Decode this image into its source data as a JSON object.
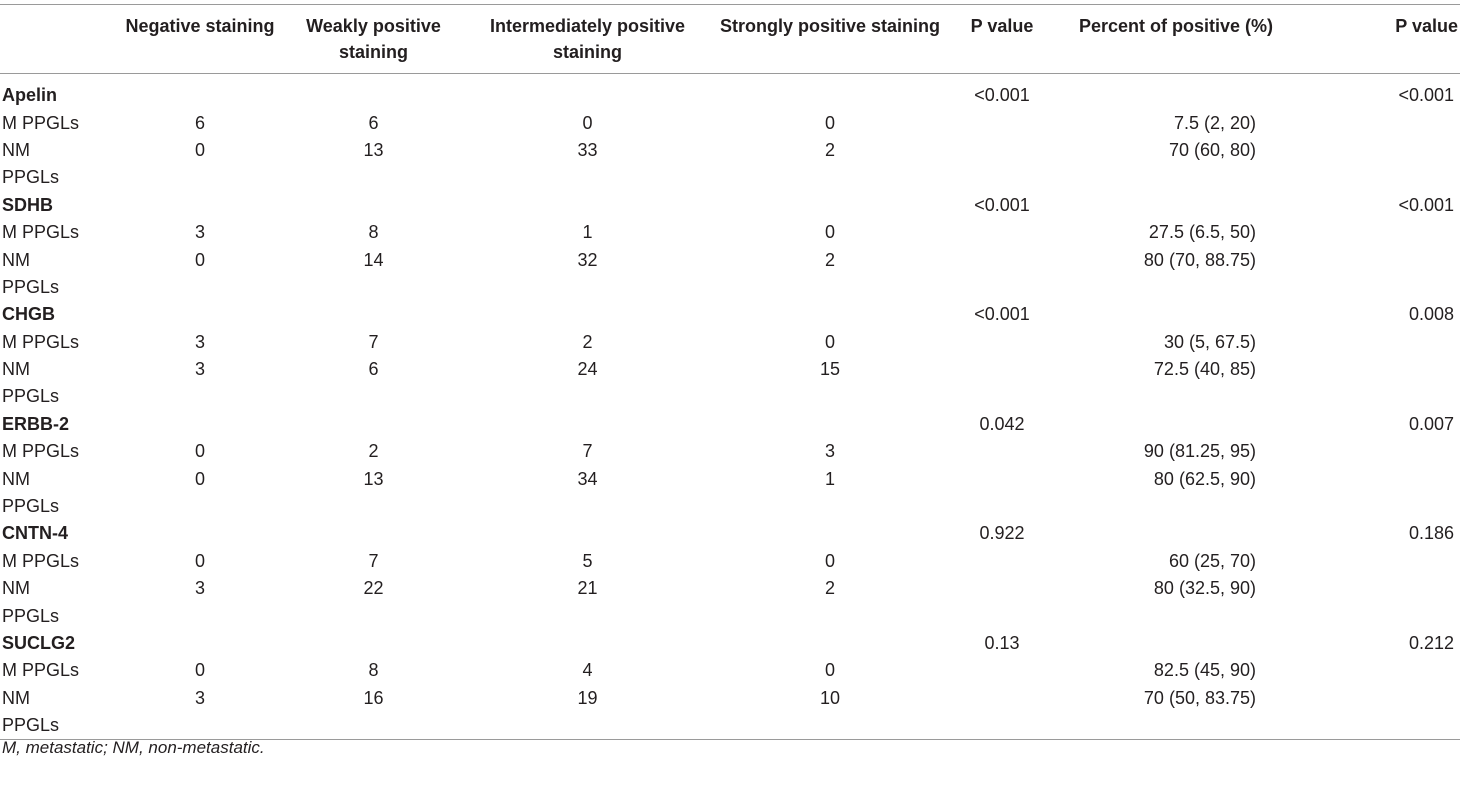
{
  "header": {
    "col0": "",
    "negative": "Negative staining",
    "weak": "Weakly positive staining",
    "intermediate": "Intermediately positive staining",
    "strong": "Strongly positive staining",
    "p1": "P value",
    "percent": "Percent of positive (%)",
    "p2": "P value"
  },
  "groups": [
    {
      "marker": "Apelin",
      "p1": "<0.001",
      "p2": "<0.001",
      "m": {
        "label": "M PPGLs",
        "neg": "6",
        "weak": "6",
        "inter": "0",
        "strong": "0",
        "pct": "7.5 (2, 20)"
      },
      "nm": {
        "label": "NM",
        "label2": "PPGLs",
        "neg": "0",
        "weak": "13",
        "inter": "33",
        "strong": "2",
        "pct": "70 (60, 80)"
      }
    },
    {
      "marker": "SDHB",
      "p1": "<0.001",
      "p2": "<0.001",
      "m": {
        "label": "M PPGLs",
        "neg": "3",
        "weak": "8",
        "inter": "1",
        "strong": "0",
        "pct": "27.5 (6.5, 50)"
      },
      "nm": {
        "label": "NM",
        "label2": "PPGLs",
        "neg": "0",
        "weak": "14",
        "inter": "32",
        "strong": "2",
        "pct": "80 (70, 88.75)"
      }
    },
    {
      "marker": "CHGB",
      "p1": "<0.001",
      "p2": "0.008",
      "m": {
        "label": "M PPGLs",
        "neg": "3",
        "weak": "7",
        "inter": "2",
        "strong": "0",
        "pct": "30 (5, 67.5)"
      },
      "nm": {
        "label": "NM",
        "label2": "PPGLs",
        "neg": "3",
        "weak": "6",
        "inter": "24",
        "strong": "15",
        "pct": "72.5 (40, 85)"
      }
    },
    {
      "marker": "ERBB-2",
      "p1": "0.042",
      "p2": "0.007",
      "m": {
        "label": "M PPGLs",
        "neg": "0",
        "weak": "2",
        "inter": "7",
        "strong": "3",
        "pct": "90 (81.25, 95)"
      },
      "nm": {
        "label": "NM",
        "label2": "PPGLs",
        "neg": "0",
        "weak": "13",
        "inter": "34",
        "strong": "1",
        "pct": "80 (62.5, 90)"
      }
    },
    {
      "marker": "CNTN-4",
      "p1": "0.922",
      "p2": "0.186",
      "m": {
        "label": "M PPGLs",
        "neg": "0",
        "weak": "7",
        "inter": "5",
        "strong": "0",
        "pct": "60 (25, 70)"
      },
      "nm": {
        "label": "NM",
        "label2": "PPGLs",
        "neg": "3",
        "weak": "22",
        "inter": "21",
        "strong": "2",
        "pct": "80 (32.5, 90)"
      }
    },
    {
      "marker": "SUCLG2",
      "p1": "0.13",
      "p2": "0.212",
      "m": {
        "label": "M PPGLs",
        "neg": "0",
        "weak": "8",
        "inter": "4",
        "strong": "0",
        "pct": "82.5 (45, 90)"
      },
      "nm": {
        "label": "NM",
        "label2": "PPGLs",
        "neg": "3",
        "weak": "16",
        "inter": "19",
        "strong": "10",
        "pct": "70 (50, 83.75)"
      }
    }
  ],
  "footnote": "M, metastatic; NM, non-metastatic."
}
